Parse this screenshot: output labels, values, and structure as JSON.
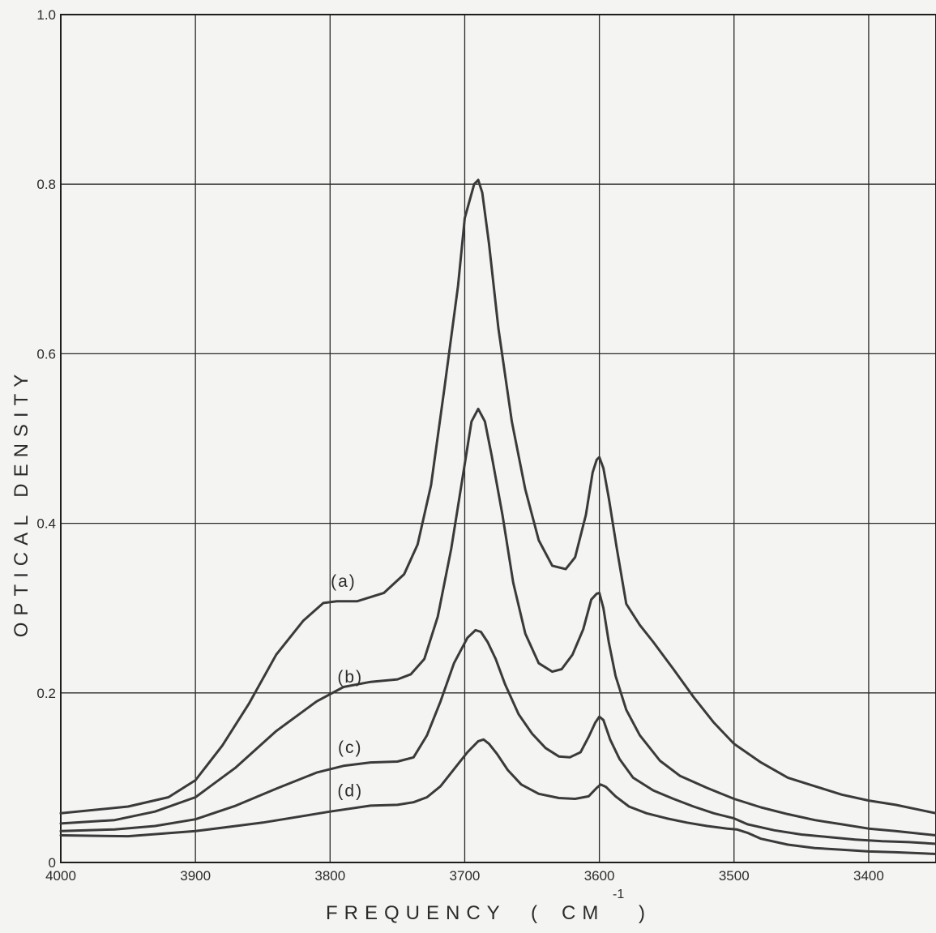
{
  "chart_data": {
    "type": "line",
    "title": "",
    "xlabel": "FREQUENCY",
    "xlabel_paren_open": "(",
    "xlabel_unit": "CM",
    "xlabel_unit_exponent": "-1",
    "xlabel_paren_close": ")",
    "ylabel": "OPTICAL DENSITY",
    "xlim": [
      4000,
      3350
    ],
    "ylim": [
      0,
      1.0
    ],
    "x_reversed": true,
    "grid": true,
    "x_ticks": [
      4000,
      3900,
      3800,
      3700,
      3600,
      3500,
      3400
    ],
    "x_tick_labels": [
      "4000",
      "3900",
      "3800",
      "3700",
      "3600",
      "3500",
      "3400"
    ],
    "y_ticks": [
      0,
      0.2,
      0.4,
      0.6,
      0.8,
      1.0
    ],
    "y_tick_labels": [
      "0",
      "0.2",
      "0.4",
      "0.6",
      "0.8",
      "1.0"
    ],
    "series": [
      {
        "name": "(a)",
        "label_at": [
          3790,
          0.325
        ],
        "x": [
          4000,
          3950,
          3920,
          3900,
          3880,
          3860,
          3840,
          3820,
          3805,
          3795,
          3780,
          3760,
          3745,
          3735,
          3725,
          3715,
          3705,
          3700,
          3693,
          3690,
          3687,
          3682,
          3675,
          3665,
          3655,
          3645,
          3635,
          3625,
          3618,
          3610,
          3605,
          3602,
          3600,
          3597,
          3593,
          3587,
          3580,
          3570,
          3560,
          3545,
          3530,
          3515,
          3500,
          3480,
          3460,
          3440,
          3420,
          3400,
          3380,
          3350
        ],
        "y": [
          0.058,
          0.066,
          0.077,
          0.097,
          0.138,
          0.188,
          0.245,
          0.285,
          0.306,
          0.308,
          0.308,
          0.318,
          0.34,
          0.375,
          0.445,
          0.56,
          0.68,
          0.76,
          0.8,
          0.805,
          0.79,
          0.73,
          0.63,
          0.52,
          0.44,
          0.38,
          0.35,
          0.346,
          0.36,
          0.41,
          0.46,
          0.475,
          0.478,
          0.465,
          0.43,
          0.37,
          0.305,
          0.28,
          0.26,
          0.228,
          0.195,
          0.165,
          0.14,
          0.118,
          0.1,
          0.09,
          0.08,
          0.073,
          0.068,
          0.058
        ]
      },
      {
        "name": "(b)",
        "label_at": [
          3785,
          0.212
        ],
        "x": [
          4000,
          3960,
          3930,
          3900,
          3870,
          3840,
          3810,
          3790,
          3770,
          3750,
          3740,
          3730,
          3720,
          3710,
          3700,
          3695,
          3690,
          3685,
          3680,
          3672,
          3664,
          3655,
          3645,
          3635,
          3628,
          3620,
          3612,
          3606,
          3602,
          3600,
          3597,
          3593,
          3588,
          3580,
          3570,
          3555,
          3540,
          3520,
          3500,
          3480,
          3460,
          3440,
          3420,
          3400,
          3380,
          3350
        ],
        "y": [
          0.046,
          0.05,
          0.06,
          0.077,
          0.112,
          0.155,
          0.19,
          0.207,
          0.213,
          0.216,
          0.222,
          0.24,
          0.29,
          0.37,
          0.47,
          0.52,
          0.535,
          0.52,
          0.48,
          0.41,
          0.33,
          0.27,
          0.235,
          0.225,
          0.228,
          0.245,
          0.275,
          0.31,
          0.317,
          0.318,
          0.3,
          0.26,
          0.22,
          0.18,
          0.15,
          0.12,
          0.102,
          0.088,
          0.075,
          0.065,
          0.057,
          0.05,
          0.045,
          0.04,
          0.037,
          0.032
        ]
      },
      {
        "name": "(c)",
        "label_at": [
          3785,
          0.129
        ],
        "x": [
          4000,
          3960,
          3930,
          3900,
          3870,
          3840,
          3810,
          3790,
          3770,
          3750,
          3738,
          3728,
          3718,
          3708,
          3698,
          3692,
          3688,
          3683,
          3677,
          3670,
          3660,
          3650,
          3640,
          3630,
          3622,
          3614,
          3608,
          3603,
          3600,
          3597,
          3592,
          3585,
          3575,
          3560,
          3545,
          3530,
          3515,
          3500,
          3490,
          3470,
          3450,
          3430,
          3410,
          3390,
          3370,
          3350
        ],
        "y": [
          0.037,
          0.039,
          0.043,
          0.051,
          0.067,
          0.087,
          0.106,
          0.114,
          0.118,
          0.119,
          0.124,
          0.15,
          0.19,
          0.235,
          0.265,
          0.274,
          0.272,
          0.26,
          0.24,
          0.21,
          0.175,
          0.152,
          0.135,
          0.125,
          0.124,
          0.13,
          0.148,
          0.165,
          0.172,
          0.168,
          0.145,
          0.122,
          0.1,
          0.085,
          0.075,
          0.066,
          0.058,
          0.052,
          0.045,
          0.038,
          0.033,
          0.03,
          0.027,
          0.025,
          0.024,
          0.022
        ]
      },
      {
        "name": "(d)",
        "label_at": [
          3785,
          0.078
        ],
        "x": [
          4000,
          3950,
          3900,
          3850,
          3800,
          3770,
          3750,
          3738,
          3728,
          3718,
          3708,
          3698,
          3690,
          3686,
          3682,
          3676,
          3668,
          3658,
          3645,
          3630,
          3618,
          3608,
          3602,
          3599,
          3595,
          3588,
          3578,
          3565,
          3550,
          3535,
          3520,
          3505,
          3498,
          3490,
          3480,
          3460,
          3440,
          3420,
          3400,
          3380,
          3350
        ],
        "y": [
          0.032,
          0.031,
          0.037,
          0.047,
          0.06,
          0.067,
          0.068,
          0.071,
          0.077,
          0.09,
          0.11,
          0.13,
          0.143,
          0.145,
          0.14,
          0.128,
          0.109,
          0.092,
          0.081,
          0.076,
          0.075,
          0.078,
          0.088,
          0.092,
          0.089,
          0.078,
          0.066,
          0.058,
          0.052,
          0.047,
          0.043,
          0.04,
          0.039,
          0.035,
          0.028,
          0.021,
          0.017,
          0.015,
          0.013,
          0.012,
          0.01
        ]
      }
    ]
  }
}
